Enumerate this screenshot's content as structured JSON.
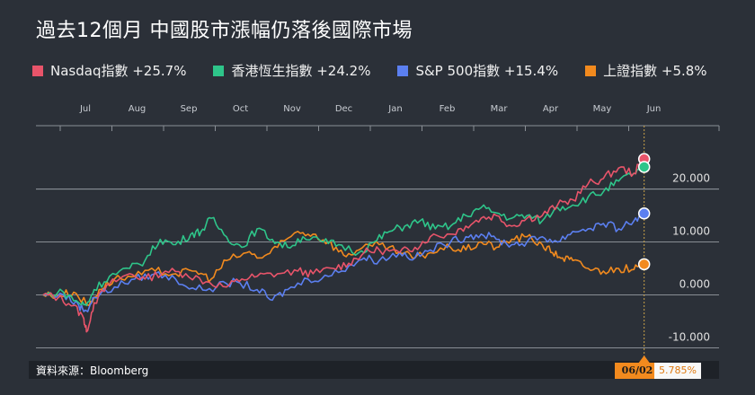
{
  "title": "過去12個月 中國股市漲幅仍落後國際市場",
  "source": "資料來源：Bloomberg",
  "tooltip": {
    "date": "06/02",
    "value": "5.785%"
  },
  "legend": [
    {
      "label": "Nasdaq指數 +25.7%",
      "color": "#e8546a"
    },
    {
      "label": "香港恆生指數 +24.2%",
      "color": "#2ec58a"
    },
    {
      "label": "S&P 500指數 +15.4%",
      "color": "#5b7ff0"
    },
    {
      "label": "上證指數 +5.8%",
      "color": "#f28a1e"
    }
  ],
  "chart_data": {
    "type": "line",
    "title": "過去12個月 中國股市漲幅仍落後國際市場",
    "xlabel": "",
    "ylabel": "",
    "x_ticks": [
      "Jul",
      "Aug",
      "Sep",
      "Oct",
      "Nov",
      "Dec",
      "Jan",
      "Feb",
      "Mar",
      "Apr",
      "May",
      "Jun"
    ],
    "y_ticks": [
      "20.000",
      "10.000",
      "0.000",
      "-10.000"
    ],
    "y_tick_values": [
      20,
      10,
      0,
      -10
    ],
    "ylim": [
      -11.8,
      32
    ],
    "xlim": [
      0,
      12
    ],
    "grid": true,
    "legend_position": "top",
    "series": [
      {
        "name": "Nasdaq指數",
        "color": "#e8546a",
        "final": 25.7,
        "points": [
          [
            0,
            0
          ],
          [
            0.3,
            -0.5
          ],
          [
            0.6,
            -2
          ],
          [
            0.8,
            -4.5
          ],
          [
            0.85,
            -7
          ],
          [
            1.0,
            -1.5
          ],
          [
            1.3,
            2
          ],
          [
            1.7,
            4
          ],
          [
            2.0,
            3
          ],
          [
            2.4,
            4.5
          ],
          [
            2.8,
            4
          ],
          [
            3.2,
            2.5
          ],
          [
            3.6,
            1.5
          ],
          [
            3.9,
            3
          ],
          [
            4.2,
            3.5
          ],
          [
            4.6,
            4
          ],
          [
            5.0,
            4.5
          ],
          [
            5.3,
            4
          ],
          [
            5.7,
            5
          ],
          [
            6.0,
            6
          ],
          [
            6.3,
            8
          ],
          [
            6.6,
            8.5
          ],
          [
            7.0,
            8
          ],
          [
            7.3,
            9
          ],
          [
            7.6,
            11
          ],
          [
            8.0,
            11.5
          ],
          [
            8.3,
            13
          ],
          [
            8.6,
            14.5
          ],
          [
            8.9,
            15
          ],
          [
            9.2,
            13
          ],
          [
            9.5,
            14.5
          ],
          [
            9.8,
            15
          ],
          [
            10.1,
            17
          ],
          [
            10.4,
            18
          ],
          [
            10.7,
            21
          ],
          [
            11.0,
            22
          ],
          [
            11.3,
            24
          ],
          [
            11.6,
            23
          ],
          [
            11.8,
            25.7
          ]
        ]
      },
      {
        "name": "香港恆生指數",
        "color": "#2ec58a",
        "final": 24.2,
        "points": [
          [
            0,
            0
          ],
          [
            0.4,
            0.5
          ],
          [
            0.7,
            -1.5
          ],
          [
            0.85,
            -2
          ],
          [
            1.0,
            1
          ],
          [
            1.3,
            3.5
          ],
          [
            1.7,
            5
          ],
          [
            2.0,
            6.5
          ],
          [
            2.3,
            10.5
          ],
          [
            2.6,
            9.5
          ],
          [
            2.9,
            11.5
          ],
          [
            3.1,
            12
          ],
          [
            3.3,
            14.5
          ],
          [
            3.6,
            11
          ],
          [
            3.9,
            9
          ],
          [
            4.2,
            12.5
          ],
          [
            4.5,
            10.5
          ],
          [
            4.8,
            9
          ],
          [
            5.1,
            11
          ],
          [
            5.5,
            10
          ],
          [
            5.8,
            9.5
          ],
          [
            6.2,
            8
          ],
          [
            6.5,
            10
          ],
          [
            6.8,
            12
          ],
          [
            7.1,
            13
          ],
          [
            7.4,
            14
          ],
          [
            7.7,
            12.5
          ],
          [
            8.0,
            13
          ],
          [
            8.3,
            15
          ],
          [
            8.6,
            16.5
          ],
          [
            8.9,
            15.5
          ],
          [
            9.2,
            14.5
          ],
          [
            9.5,
            15
          ],
          [
            9.8,
            14
          ],
          [
            10.1,
            16.5
          ],
          [
            10.4,
            17
          ],
          [
            10.7,
            18.5
          ],
          [
            11.0,
            19.5
          ],
          [
            11.3,
            21.5
          ],
          [
            11.6,
            23
          ],
          [
            11.8,
            24.2
          ]
        ]
      },
      {
        "name": "S&P 500指數",
        "color": "#5b7ff0",
        "final": 15.4,
        "points": [
          [
            0,
            0
          ],
          [
            0.4,
            0
          ],
          [
            0.7,
            -2
          ],
          [
            0.85,
            -3
          ],
          [
            1.0,
            -0.5
          ],
          [
            1.4,
            1.5
          ],
          [
            1.8,
            3
          ],
          [
            2.2,
            4
          ],
          [
            2.6,
            3
          ],
          [
            3.0,
            1
          ],
          [
            3.4,
            1.5
          ],
          [
            3.8,
            2.5
          ],
          [
            4.2,
            1
          ],
          [
            4.5,
            -1
          ],
          [
            4.8,
            1
          ],
          [
            5.2,
            3
          ],
          [
            5.6,
            3.5
          ],
          [
            6.0,
            5.5
          ],
          [
            6.3,
            7
          ],
          [
            6.6,
            6.5
          ],
          [
            7.0,
            8
          ],
          [
            7.3,
            7
          ],
          [
            7.6,
            8.5
          ],
          [
            8.0,
            10
          ],
          [
            8.3,
            11
          ],
          [
            8.6,
            11.5
          ],
          [
            8.9,
            10.5
          ],
          [
            9.2,
            9.5
          ],
          [
            9.5,
            10
          ],
          [
            9.8,
            11
          ],
          [
            10.1,
            10
          ],
          [
            10.4,
            12
          ],
          [
            10.7,
            12.5
          ],
          [
            11.0,
            13.5
          ],
          [
            11.3,
            12.5
          ],
          [
            11.6,
            14
          ],
          [
            11.8,
            15.4
          ]
        ]
      },
      {
        "name": "上證指數",
        "color": "#f28a1e",
        "final": 5.8,
        "points": [
          [
            0,
            0
          ],
          [
            0.3,
            0
          ],
          [
            0.6,
            0.5
          ],
          [
            0.9,
            -2
          ],
          [
            1.1,
            1
          ],
          [
            1.4,
            3
          ],
          [
            1.8,
            3.5
          ],
          [
            2.2,
            4.5
          ],
          [
            2.6,
            4
          ],
          [
            3.0,
            4.5
          ],
          [
            3.3,
            3
          ],
          [
            3.6,
            6.5
          ],
          [
            4.0,
            8
          ],
          [
            4.3,
            7
          ],
          [
            4.6,
            9
          ],
          [
            5.0,
            12
          ],
          [
            5.3,
            11.5
          ],
          [
            5.6,
            10
          ],
          [
            5.9,
            7.5
          ],
          [
            6.2,
            8.5
          ],
          [
            6.6,
            9.5
          ],
          [
            7.0,
            8
          ],
          [
            7.3,
            7
          ],
          [
            7.6,
            8
          ],
          [
            8.0,
            9
          ],
          [
            8.3,
            8.5
          ],
          [
            8.6,
            10
          ],
          [
            8.9,
            9
          ],
          [
            9.2,
            10.5
          ],
          [
            9.5,
            11
          ],
          [
            9.8,
            9.5
          ],
          [
            10.0,
            8
          ],
          [
            10.2,
            7
          ],
          [
            10.4,
            6.5
          ],
          [
            10.7,
            5
          ],
          [
            11.0,
            4.5
          ],
          [
            11.3,
            5
          ],
          [
            11.6,
            4.8
          ],
          [
            11.8,
            5.8
          ]
        ]
      }
    ]
  }
}
